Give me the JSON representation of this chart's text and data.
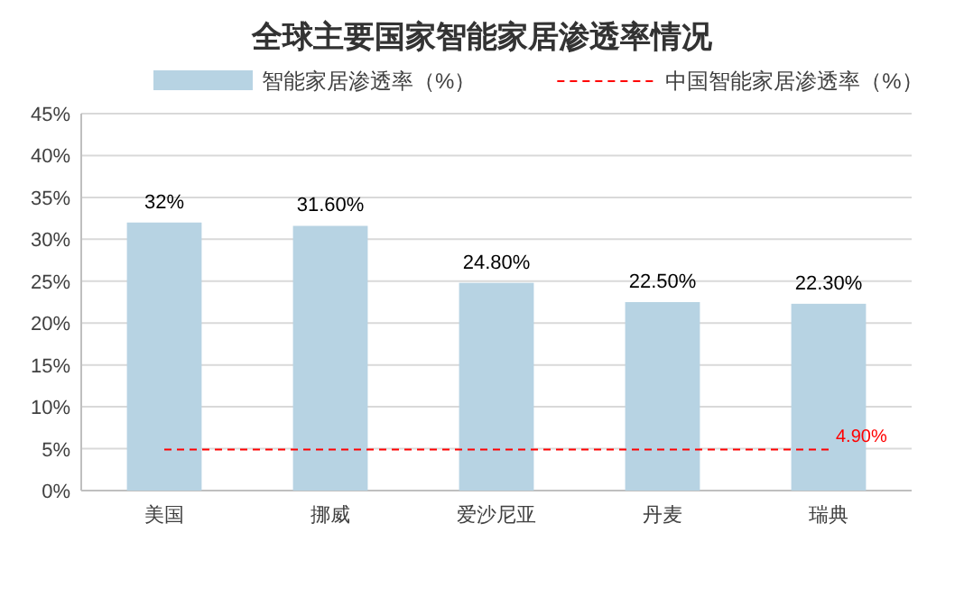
{
  "chart_data": {
    "type": "bar",
    "title": "全球主要国家智能家居渗透率情况",
    "categories": [
      "美国",
      "挪威",
      "爱沙尼亚",
      "丹麦",
      "瑞典"
    ],
    "series": [
      {
        "name": "智能家居渗透率（%）",
        "color": "#b7d3e3",
        "values": [
          32,
          31.6,
          24.8,
          22.5,
          22.3
        ],
        "value_labels": [
          "32%",
          "31.60%",
          "24.80%",
          "22.50%",
          "22.30%"
        ]
      },
      {
        "name": "中国智能家居渗透率（%）",
        "type": "line",
        "color": "#ff0000",
        "line_style": "dashed",
        "marker": "none",
        "values": [
          4.9,
          4.9,
          4.9,
          4.9,
          4.9
        ],
        "value_labels": [
          null,
          null,
          null,
          null,
          "4.90%"
        ]
      }
    ],
    "ylim": [
      0,
      45
    ],
    "yticks": [
      {
        "value": 0,
        "label": "0%"
      },
      {
        "value": 5,
        "label": "5%"
      },
      {
        "value": 10,
        "label": "10%"
      },
      {
        "value": 15,
        "label": "15%"
      },
      {
        "value": 20,
        "label": "20%"
      },
      {
        "value": 25,
        "label": "25%"
      },
      {
        "value": 30,
        "label": "30%"
      },
      {
        "value": 35,
        "label": "35%"
      },
      {
        "value": 40,
        "label": "40%"
      },
      {
        "value": 45,
        "label": "45%"
      }
    ],
    "grid": "y",
    "legend": "top"
  }
}
